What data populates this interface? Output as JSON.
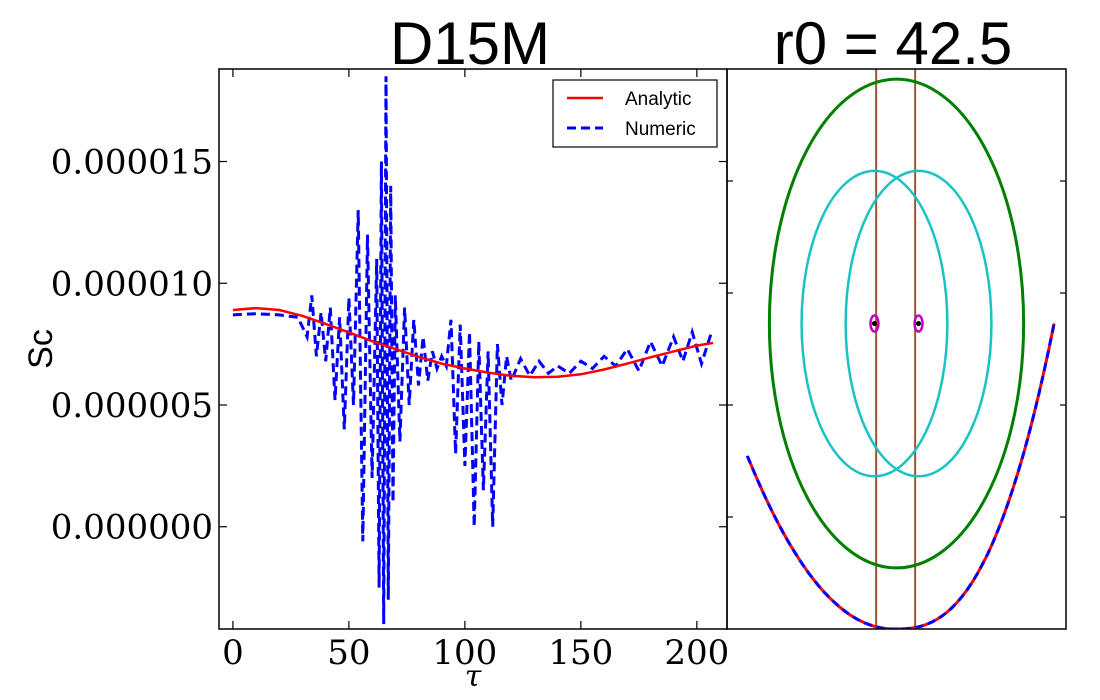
{
  "chart_data": [
    {
      "type": "line",
      "title": "D15M",
      "xlabel": "τ",
      "ylabel": "Sc",
      "xlim": [
        -6,
        213
      ],
      "ylim": [
        -4.2e-06,
        1.88e-05
      ],
      "xticks": [
        0,
        50,
        100,
        150,
        200
      ],
      "xtick_labels": [
        "0",
        "50",
        "100",
        "150",
        "200"
      ],
      "yticks": [
        0.0,
        5e-06,
        1e-05,
        1.5e-05
      ],
      "ytick_labels": [
        "0.000000",
        "0.000005",
        "0.000010",
        "0.000015"
      ],
      "legend_position": "top-right",
      "series": [
        {
          "name": "Analytic",
          "style": "solid",
          "color": "#ff0000",
          "x": [
            0,
            10,
            20,
            30,
            40,
            50,
            60,
            70,
            80,
            90,
            100,
            110,
            120,
            130,
            140,
            150,
            160,
            170,
            180,
            190,
            200,
            207
          ],
          "y": [
            8.9e-06,
            8.98e-06,
            8.9e-06,
            8.66e-06,
            8.33e-06,
            7.98e-06,
            7.62e-06,
            7.3e-06,
            6.98e-06,
            6.7e-06,
            6.5e-06,
            6.33e-06,
            6.2e-06,
            6.14e-06,
            6.16e-06,
            6.26e-06,
            6.46e-06,
            6.7e-06,
            6.96e-06,
            7.2e-06,
            7.44e-06,
            7.55e-06
          ]
        },
        {
          "name": "Numeric",
          "style": "dashed",
          "color": "#0000ff",
          "x": [
            0,
            10,
            20,
            28,
            32,
            34,
            36,
            38,
            40,
            42,
            44,
            46,
            48,
            50,
            52,
            54,
            56,
            58,
            60,
            62,
            63,
            64,
            65,
            66,
            67,
            68,
            69,
            70,
            72,
            74,
            76,
            78,
            80,
            82,
            84,
            86,
            88,
            90,
            92,
            94,
            96,
            98,
            100,
            102,
            104,
            106,
            108,
            110,
            112,
            114,
            116,
            118,
            120,
            124,
            128,
            132,
            136,
            140,
            145,
            150,
            155,
            160,
            165,
            170,
            175,
            180,
            185,
            190,
            194,
            198,
            202,
            206
          ],
          "y": [
            8.7e-06,
            8.75e-06,
            8.7e-06,
            8.6e-06,
            7.8e-06,
            9.5e-06,
            7e-06,
            8.8e-06,
            6.8e-06,
            9e-06,
            5.2e-06,
            8.6e-06,
            4e-06,
            9.4e-06,
            5e-06,
            1.3e-05,
            -6e-07,
            1.2e-05,
            2e-06,
            1.1e-05,
            -2.5e-06,
            1.5e-05,
            -4e-06,
            1.85e-05,
            -3e-06,
            1.4e-05,
            1e-06,
            9.5e-06,
            3.5e-06,
            9e-06,
            5e-06,
            8.5e-06,
            5.8e-06,
            7.8e-06,
            6e-06,
            7.2e-06,
            6.5e-06,
            7e-06,
            6.6e-06,
            8.5e-06,
            3e-06,
            8.3e-06,
            2.5e-06,
            8e-06,
            0.0,
            7.6e-06,
            1.5e-06,
            7.2e-06,
            0.0,
            7.5e-06,
            5e-06,
            7e-06,
            6e-06,
            6.9e-06,
            6.2e-06,
            6.8e-06,
            6.3e-06,
            6.6e-06,
            6.3e-06,
            6.8e-06,
            6.5e-06,
            7e-06,
            6.6e-06,
            7.3e-06,
            6.4e-06,
            7.6e-06,
            6.6e-06,
            7.8e-06,
            6.8e-06,
            8e-06,
            6.7e-06,
            7.9e-06
          ]
        }
      ]
    },
    {
      "type": "diagram",
      "title": "r0 = 42.5",
      "xlim": [
        -1,
        1
      ],
      "ylim": [
        -1.2,
        1
      ],
      "shapes": {
        "outer_ellipse": {
          "color": "#008000",
          "cx": 0.0,
          "cy": 0.0,
          "rx": 0.75,
          "ry": 0.96
        },
        "inner_ellipses": [
          {
            "color": "#19c3c3",
            "cx": -0.13,
            "cy": 0.0,
            "rx": 0.43,
            "ry": 0.6
          },
          {
            "color": "#19c3c3",
            "cx": 0.13,
            "cy": 0.0,
            "rx": 0.43,
            "ry": 0.6
          }
        ],
        "small_circles": [
          {
            "color": "#bf00bf",
            "cx": -0.13,
            "cy": 0.0
          },
          {
            "color": "#bf00bf",
            "cx": 0.13,
            "cy": 0.0
          }
        ],
        "vertical_lines": [
          {
            "color": "#a0522d",
            "x": -0.12
          },
          {
            "color": "#a0522d",
            "x": 0.11
          }
        ],
        "curve_analytic": {
          "color": "#ff0000",
          "style": "solid",
          "x_min": -0.88,
          "x_max": 0.93,
          "x_vertex": -0.01,
          "y_vertex": -1.2,
          "y_left": -0.52,
          "y_right": 0.0
        },
        "curve_numeric": {
          "color": "#0000ff",
          "style": "dashed",
          "x_min": -0.88,
          "x_max": 0.93,
          "x_vertex": -0.01,
          "y_vertex": -1.2,
          "y_left": -0.52,
          "y_right": 0.0
        }
      }
    }
  ]
}
